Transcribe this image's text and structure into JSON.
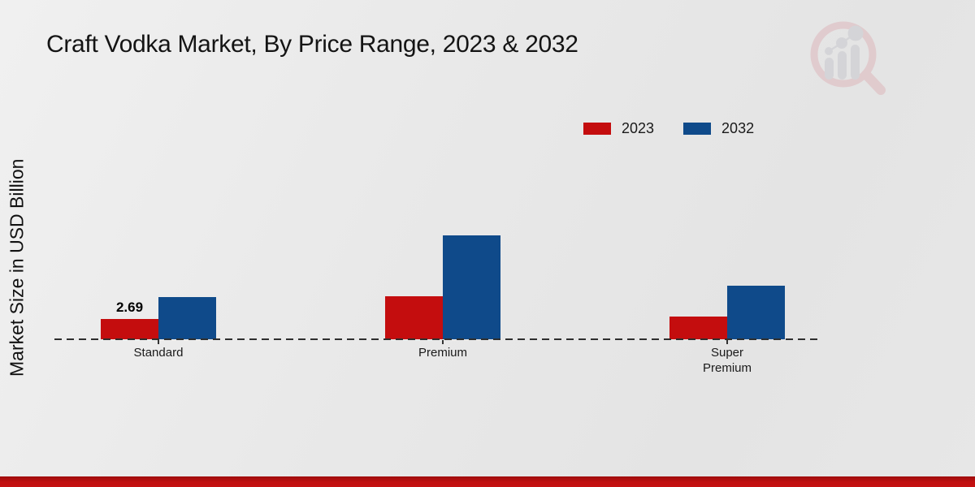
{
  "chart_data": {
    "type": "bar",
    "title": "Craft Vodka Market, By Price Range, 2023 & 2032",
    "xlabel": "",
    "ylabel": "Market Size in USD Billion",
    "categories": [
      "Standard",
      "Premium",
      "Super Premium"
    ],
    "series": [
      {
        "name": "2023",
        "color": "#c40d0e",
        "values": [
          2.69,
          5.7,
          3.0
        ],
        "data_labels": [
          "2.69",
          "",
          ""
        ]
      },
      {
        "name": "2032",
        "color": "#0f4a8a",
        "values": [
          5.6,
          13.8,
          7.1
        ],
        "data_labels": [
          "",
          "",
          ""
        ]
      }
    ],
    "legend_position": "top-right",
    "grid": false,
    "baseline_style": "dashed",
    "ylim": [
      0,
      15
    ]
  },
  "branding": {
    "watermark": "market-research-logo",
    "footer_color": "#c11010"
  }
}
